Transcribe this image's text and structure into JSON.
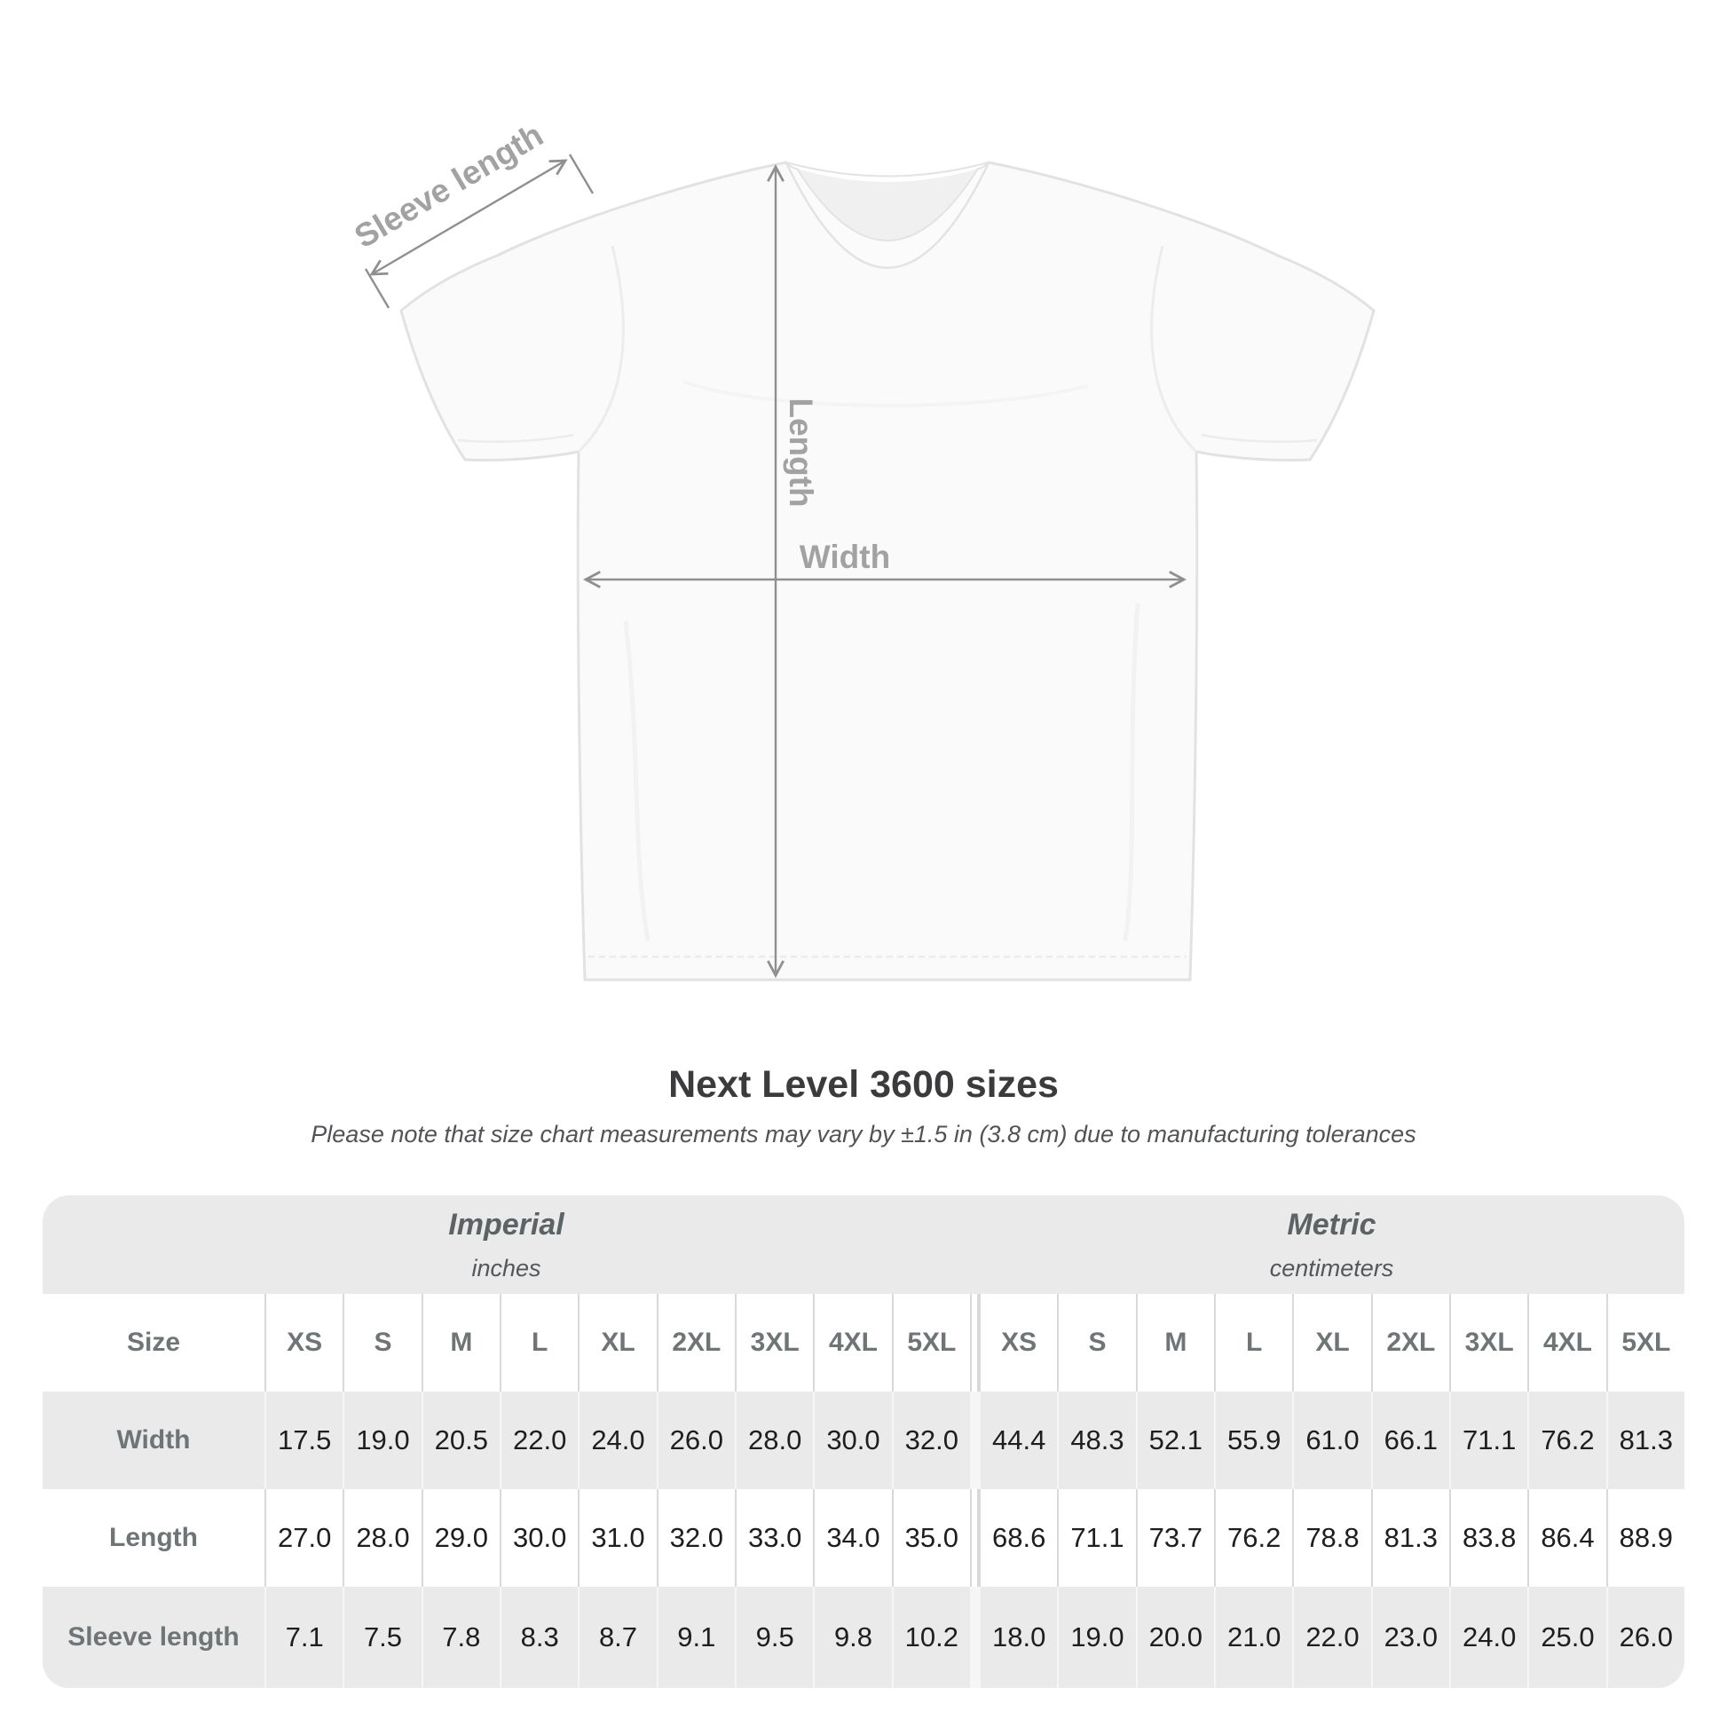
{
  "diagram": {
    "labels": {
      "sleeve": "Sleeve length",
      "length": "Length",
      "width": "Width"
    }
  },
  "title": "Next Level 3600 sizes",
  "note": "Please note that size chart measurements may vary by ±1.5 in (3.8 cm) due to manufacturing tolerances",
  "table": {
    "sections": [
      {
        "name": "Imperial",
        "unit": "inches"
      },
      {
        "name": "Metric",
        "unit": "centimeters"
      }
    ],
    "size_header": "Size",
    "sizes": [
      "XS",
      "S",
      "M",
      "L",
      "XL",
      "2XL",
      "3XL",
      "4XL",
      "5XL"
    ],
    "rows": [
      {
        "label": "Width",
        "imperial": [
          "17.5",
          "19.0",
          "20.5",
          "22.0",
          "24.0",
          "26.0",
          "28.0",
          "30.0",
          "32.0"
        ],
        "metric": [
          "44.4",
          "48.3",
          "52.1",
          "55.9",
          "61.0",
          "66.1",
          "71.1",
          "76.2",
          "81.3"
        ]
      },
      {
        "label": "Length",
        "imperial": [
          "27.0",
          "28.0",
          "29.0",
          "30.0",
          "31.0",
          "32.0",
          "33.0",
          "34.0",
          "35.0"
        ],
        "metric": [
          "68.6",
          "71.1",
          "73.7",
          "76.2",
          "78.8",
          "81.3",
          "83.8",
          "86.4",
          "88.9"
        ]
      },
      {
        "label": "Sleeve length",
        "imperial": [
          "7.1",
          "7.5",
          "7.8",
          "8.3",
          "8.7",
          "9.1",
          "9.5",
          "9.8",
          "10.2"
        ],
        "metric": [
          "18.0",
          "19.0",
          "20.0",
          "21.0",
          "22.0",
          "23.0",
          "24.0",
          "25.0",
          "26.0"
        ]
      }
    ]
  },
  "colors": {
    "arrow_gray": "#8f8f8f",
    "diagram_label_gray": "#a2a2a2",
    "table_bg": "#eaeaeb",
    "header_text": "#6f7577",
    "value_text": "#1e1e1e"
  }
}
